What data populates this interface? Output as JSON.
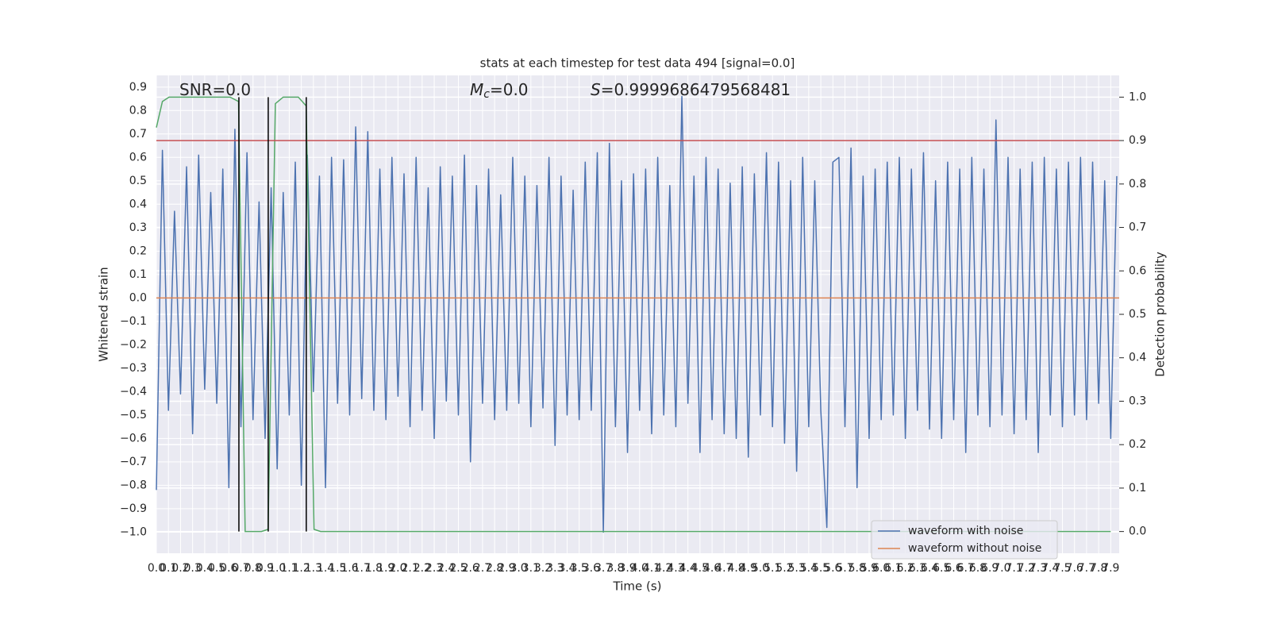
{
  "chart_data": {
    "type": "line",
    "title": "stats at each timestep for test data 494 [signal=0.0]",
    "xlabel": "Time (s)",
    "ylabel": "Whitened strain",
    "y2label": "Detection probability",
    "xlim": [
      0,
      7.97
    ],
    "ylim": [
      -1.09,
      0.95
    ],
    "y2lim": [
      -0.05,
      1.05
    ],
    "grid": true,
    "legend": "lower right",
    "xticks": [
      {
        "value": 0,
        "label": "0.0"
      },
      0.1,
      0.2,
      0.3,
      0.4,
      0.5,
      0.6,
      0.7,
      0.8,
      0.9,
      {
        "value": 1,
        "label": "1.0"
      },
      1.1,
      1.2,
      1.3,
      1.4,
      1.5,
      1.6,
      1.7,
      1.8,
      1.9,
      {
        "value": 2,
        "label": "2.0"
      },
      2.1,
      2.2,
      2.3,
      2.4,
      2.5,
      2.6,
      2.7,
      2.8,
      2.9,
      {
        "value": 3,
        "label": "3.0"
      },
      3.1,
      3.2,
      3.3,
      3.4,
      3.5,
      3.6,
      3.7,
      3.8,
      3.9,
      {
        "value": 4,
        "label": "4.0"
      },
      4.1,
      4.2,
      4.3,
      4.4,
      4.5,
      4.6,
      4.7,
      4.8,
      4.9,
      {
        "value": 5,
        "label": "5.0"
      },
      5.1,
      5.2,
      5.3,
      5.4,
      5.5,
      5.6,
      5.7,
      5.8,
      5.9,
      {
        "value": 6,
        "label": "6.0"
      },
      6.1,
      6.2,
      6.3,
      6.4,
      6.5,
      6.6,
      6.7,
      6.8,
      6.9,
      {
        "value": 7,
        "label": "7.0"
      },
      7.1,
      7.2,
      7.3,
      7.4,
      7.5,
      7.6,
      7.7,
      7.8,
      7.9
    ],
    "yticks": [
      {
        "value": -1.0,
        "label": "−1.0"
      },
      {
        "value": -0.9,
        "label": "−0.9"
      },
      {
        "value": -0.8,
        "label": "−0.8"
      },
      {
        "value": -0.7,
        "label": "−0.7"
      },
      {
        "value": -0.6,
        "label": "−0.6"
      },
      {
        "value": -0.5,
        "label": "−0.5"
      },
      {
        "value": -0.4,
        "label": "−0.4"
      },
      {
        "value": -0.3,
        "label": "−0.3"
      },
      {
        "value": -0.2,
        "label": "−0.2"
      },
      {
        "value": -0.1,
        "label": "−0.1"
      },
      {
        "value": 0,
        "label": "0.0"
      },
      0.1,
      0.2,
      0.3,
      0.4,
      0.5,
      0.6,
      0.7,
      0.8,
      0.9
    ],
    "y2ticks": [
      {
        "value": 0,
        "label": "0.0"
      },
      0.1,
      0.2,
      0.3,
      0.4,
      0.5,
      0.6,
      0.7,
      0.8,
      0.9,
      {
        "value": 1,
        "label": "1.0"
      }
    ],
    "annotations": [
      {
        "text": "SNR=0.0"
      },
      {
        "symbol": "M",
        "subscript": "c",
        "text": "=0.0"
      },
      {
        "symbol": "S",
        "text": "=0.9999686479568481"
      }
    ],
    "series": [
      {
        "name": "waveform with noise",
        "color": "#4c72b0",
        "x": [
          0,
          0.05,
          0.1,
          0.15,
          0.2,
          0.25,
          0.3,
          0.35,
          0.4,
          0.45,
          0.5,
          0.55,
          0.6,
          0.65,
          0.7,
          0.75,
          0.8,
          0.85,
          0.9,
          0.95,
          1,
          1.05,
          1.1,
          1.15,
          1.2,
          1.25,
          1.3,
          1.35,
          1.4,
          1.45,
          1.5,
          1.55,
          1.6,
          1.65,
          1.7,
          1.75,
          1.8,
          1.85,
          1.9,
          1.95,
          2,
          2.05,
          2.1,
          2.15,
          2.2,
          2.25,
          2.3,
          2.35,
          2.4,
          2.45,
          2.5,
          2.55,
          2.6,
          2.65,
          2.7,
          2.75,
          2.8,
          2.85,
          2.9,
          2.95,
          3,
          3.05,
          3.1,
          3.15,
          3.2,
          3.25,
          3.3,
          3.35,
          3.4,
          3.45,
          3.5,
          3.55,
          3.6,
          3.65,
          3.7,
          3.75,
          3.8,
          3.85,
          3.9,
          3.95,
          4,
          4.05,
          4.1,
          4.15,
          4.2,
          4.25,
          4.3,
          4.35,
          4.4,
          4.45,
          4.5,
          4.55,
          4.6,
          4.65,
          4.7,
          4.75,
          4.8,
          4.85,
          4.9,
          4.95,
          5,
          5.05,
          5.1,
          5.15,
          5.2,
          5.25,
          5.3,
          5.35,
          5.4,
          5.45,
          5.5,
          5.55,
          5.6,
          5.65,
          5.7,
          5.75,
          5.8,
          5.85,
          5.9,
          5.95,
          6,
          6.05,
          6.1,
          6.15,
          6.2,
          6.25,
          6.3,
          6.35,
          6.4,
          6.45,
          6.5,
          6.55,
          6.6,
          6.65,
          6.7,
          6.75,
          6.8,
          6.85,
          6.9,
          6.95,
          7,
          7.05,
          7.1,
          7.15,
          7.2,
          7.25,
          7.3,
          7.35,
          7.4,
          7.45,
          7.5,
          7.55,
          7.6,
          7.65,
          7.7,
          7.75,
          7.8,
          7.85,
          7.9,
          7.95
        ],
        "values": [
          -0.82,
          0.63,
          -0.48,
          0.37,
          -0.41,
          0.56,
          -0.58,
          0.61,
          -0.39,
          0.45,
          -0.45,
          0.55,
          -0.81,
          0.72,
          -0.55,
          0.62,
          -0.52,
          0.41,
          -0.6,
          0.47,
          -0.73,
          0.45,
          -0.5,
          0.58,
          -0.8,
          0.61,
          -0.4,
          0.52,
          -0.81,
          0.6,
          -0.45,
          0.59,
          -0.5,
          0.73,
          -0.43,
          0.71,
          -0.48,
          0.55,
          -0.52,
          0.6,
          -0.42,
          0.53,
          -0.55,
          0.6,
          -0.48,
          0.47,
          -0.6,
          0.56,
          -0.44,
          0.52,
          -0.5,
          0.61,
          -0.7,
          0.48,
          -0.45,
          0.55,
          -0.52,
          0.44,
          -0.48,
          0.6,
          -0.45,
          0.52,
          -0.55,
          0.48,
          -0.47,
          0.6,
          -0.63,
          0.52,
          -0.5,
          0.46,
          -0.52,
          0.58,
          -0.48,
          0.62,
          -1.0,
          0.66,
          -0.55,
          0.5,
          -0.66,
          0.53,
          -0.48,
          0.55,
          -0.58,
          0.6,
          -0.5,
          0.48,
          -0.55,
          0.86,
          -0.45,
          0.52,
          -0.66,
          0.6,
          -0.52,
          0.55,
          -0.58,
          0.49,
          -0.6,
          0.56,
          -0.68,
          0.53,
          -0.5,
          0.62,
          -0.55,
          0.58,
          -0.62,
          0.5,
          -0.74,
          0.6,
          -0.55,
          0.5,
          -0.48,
          -0.98,
          0.58,
          0.6,
          -0.55,
          0.64,
          -0.81,
          0.52,
          -0.6,
          0.55,
          -0.52,
          0.58,
          -0.5,
          0.6,
          -0.6,
          0.55,
          -0.48,
          0.62,
          -0.56,
          0.5,
          -0.6,
          0.58,
          -0.52,
          0.55,
          -0.66,
          0.6,
          -0.5,
          0.55,
          -0.55,
          0.76,
          -0.5,
          0.6,
          -0.58,
          0.55,
          -0.52,
          0.58,
          -0.66,
          0.6,
          -0.5,
          0.55,
          -0.55,
          0.58,
          -0.5,
          0.6,
          -0.52,
          0.58,
          -0.45,
          0.5,
          -0.6,
          0.52
        ]
      },
      {
        "name": "waveform without noise",
        "color": "#dd8452",
        "x": [
          0,
          7.97
        ],
        "values": [
          0,
          0
        ]
      }
    ],
    "probability": {
      "color": "#55a868",
      "axis": "y2",
      "x": [
        0,
        0.05,
        0.105,
        0.61,
        0.68,
        0.735,
        0.87,
        0.925,
        0.985,
        1.05,
        1.175,
        1.24,
        1.305,
        1.36,
        7.9
      ],
      "values": [
        0.93,
        0.99,
        1.0,
        1.0,
        0.99,
        0,
        0,
        0.005,
        0.985,
        1.0,
        1.0,
        0.98,
        0.005,
        0,
        0
      ]
    },
    "threshold": {
      "value": 0.9,
      "axis": "y2",
      "color": "#c44e52"
    },
    "vlines": [
      0.683,
      0.926,
      1.241
    ],
    "vline_span": [
      0,
      1.0
    ],
    "vline_color": "#000000"
  }
}
